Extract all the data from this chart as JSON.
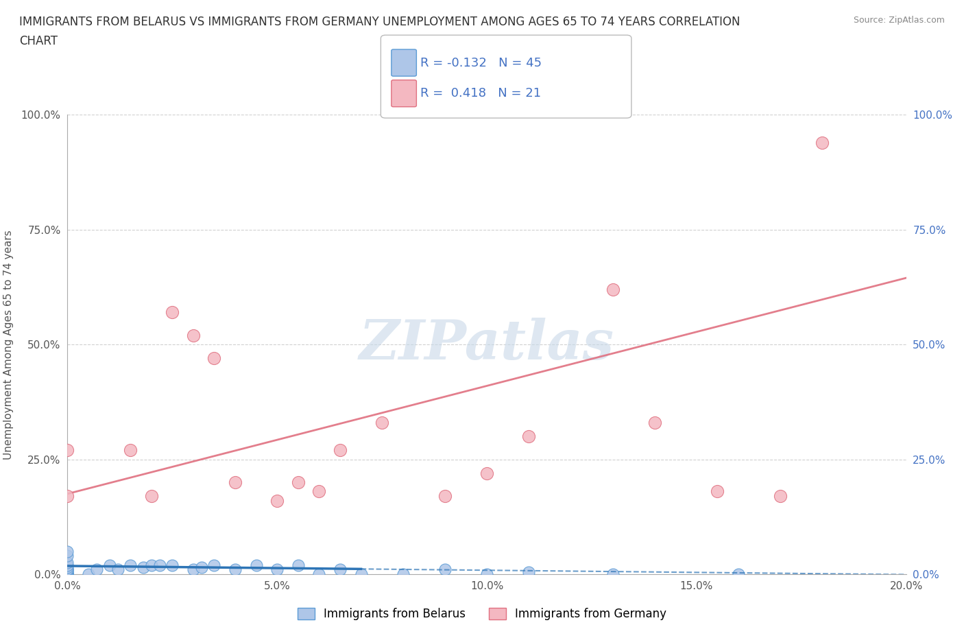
{
  "title_line1": "IMMIGRANTS FROM BELARUS VS IMMIGRANTS FROM GERMANY UNEMPLOYMENT AMONG AGES 65 TO 74 YEARS CORRELATION",
  "title_line2": "CHART",
  "source": "Source: ZipAtlas.com",
  "ylabel": "Unemployment Among Ages 65 to 74 years",
  "xlim": [
    0.0,
    0.2
  ],
  "ylim": [
    0.0,
    1.0
  ],
  "xtick_labels": [
    "0.0%",
    "5.0%",
    "10.0%",
    "15.0%",
    "20.0%"
  ],
  "xtick_vals": [
    0.0,
    0.05,
    0.1,
    0.15,
    0.2
  ],
  "ytick_labels": [
    "0.0%",
    "25.0%",
    "50.0%",
    "75.0%",
    "100.0%"
  ],
  "ytick_vals": [
    0.0,
    0.25,
    0.5,
    0.75,
    1.0
  ],
  "belarus_color": "#aec6e8",
  "belarus_edge": "#5b9bd5",
  "germany_color": "#f4b8c1",
  "germany_edge": "#e07080",
  "trendline_belarus_color": "#2e75b6",
  "trendline_germany_color": "#e07080",
  "R_belarus": -0.132,
  "N_belarus": 45,
  "R_germany": 0.418,
  "N_germany": 21,
  "belarus_x": [
    0.0,
    0.0,
    0.0,
    0.0,
    0.0,
    0.0,
    0.0,
    0.0,
    0.0,
    0.0,
    0.0,
    0.0,
    0.0,
    0.0,
    0.0,
    0.0,
    0.0,
    0.0,
    0.0,
    0.0,
    0.005,
    0.007,
    0.01,
    0.012,
    0.015,
    0.018,
    0.02,
    0.022,
    0.025,
    0.03,
    0.032,
    0.035,
    0.04,
    0.045,
    0.05,
    0.055,
    0.06,
    0.065,
    0.07,
    0.08,
    0.09,
    0.1,
    0.11,
    0.13,
    0.16
  ],
  "belarus_y": [
    0.0,
    0.0,
    0.0,
    0.0,
    0.0,
    0.0,
    0.0,
    0.0,
    0.0,
    0.005,
    0.005,
    0.008,
    0.01,
    0.01,
    0.01,
    0.015,
    0.02,
    0.025,
    0.04,
    0.05,
    0.0,
    0.01,
    0.02,
    0.01,
    0.02,
    0.015,
    0.02,
    0.02,
    0.02,
    0.01,
    0.015,
    0.02,
    0.01,
    0.02,
    0.01,
    0.02,
    0.0,
    0.01,
    0.0,
    0.0,
    0.01,
    0.0,
    0.005,
    0.0,
    0.0
  ],
  "germany_x": [
    0.0,
    0.0,
    0.015,
    0.02,
    0.025,
    0.03,
    0.035,
    0.04,
    0.05,
    0.055,
    0.06,
    0.065,
    0.075,
    0.09,
    0.1,
    0.11,
    0.13,
    0.14,
    0.155,
    0.17,
    0.18
  ],
  "germany_y": [
    0.17,
    0.27,
    0.27,
    0.17,
    0.57,
    0.52,
    0.47,
    0.2,
    0.16,
    0.2,
    0.18,
    0.27,
    0.33,
    0.17,
    0.22,
    0.3,
    0.62,
    0.33,
    0.18,
    0.17,
    0.94
  ],
  "bel_trendline_x0": 0.0,
  "bel_trendline_y0": 0.018,
  "bel_trendline_x1": 0.16,
  "bel_trendline_y1": 0.003,
  "bel_trendline_x_dash_start": 0.025,
  "ger_trendline_x0": 0.0,
  "ger_trendline_y0": 0.175,
  "ger_trendline_x1": 0.2,
  "ger_trendline_y1": 0.645,
  "watermark": "ZIPatlas",
  "watermark_color": "#c8d8e8",
  "legend_belarus": "Immigrants from Belarus",
  "legend_germany": "Immigrants from Germany",
  "background_color": "#ffffff",
  "grid_color": "#cccccc",
  "right_tick_color": "#4472c4",
  "left_tick_color": "#555555"
}
